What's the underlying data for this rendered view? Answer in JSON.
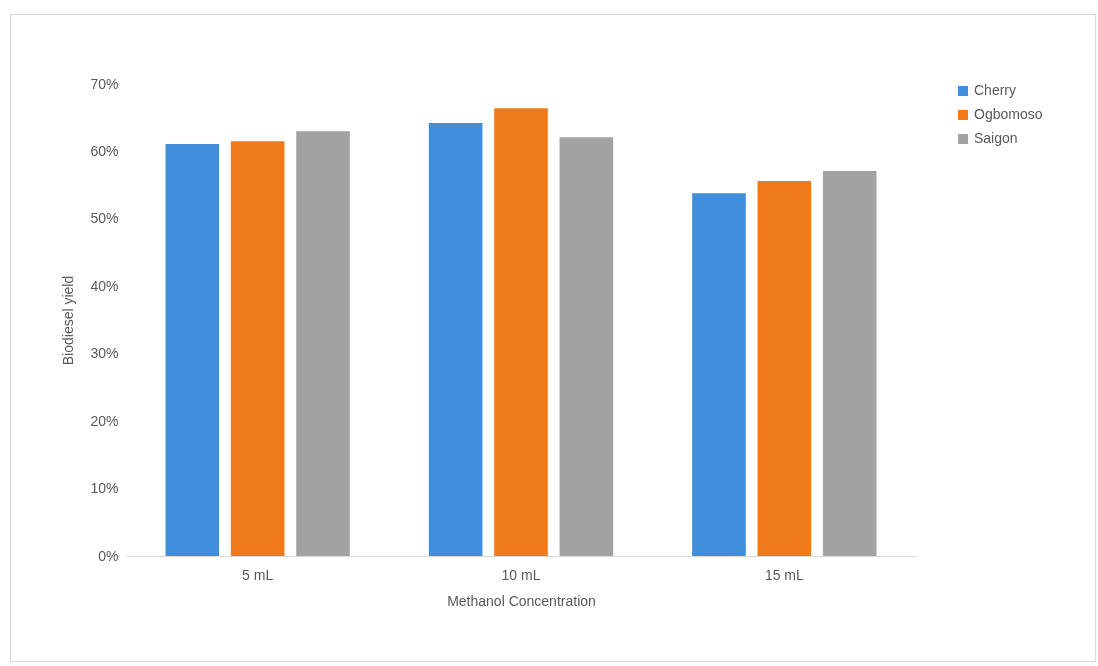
{
  "chart_data": {
    "type": "bar",
    "xlabel": "Methanol Concentration",
    "ylabel": "Biodiesel yield",
    "categories": [
      "5 mL",
      "10 mL",
      "15 mL"
    ],
    "series": [
      {
        "name": "Cherry",
        "color": "#3f8fdc",
        "values": [
          61.1,
          64.2,
          53.8
        ]
      },
      {
        "name": "Ogbomoso",
        "color": "#ef7a1a",
        "values": [
          61.5,
          66.4,
          55.6
        ]
      },
      {
        "name": "Saigon",
        "color": "#a2a2a2",
        "values": [
          63.0,
          62.1,
          57.1
        ]
      }
    ],
    "ylim": [
      0,
      70
    ],
    "yticks": [
      {
        "value": 0,
        "label": "0%"
      },
      {
        "value": 10,
        "label": "10%"
      },
      {
        "value": 20,
        "label": "20%"
      },
      {
        "value": 30,
        "label": "30%"
      },
      {
        "value": 40,
        "label": "40%"
      },
      {
        "value": 50,
        "label": "50%"
      },
      {
        "value": 60,
        "label": "60%"
      },
      {
        "value": 70,
        "label": "70%"
      }
    ],
    "grid": false,
    "legend": "right"
  }
}
